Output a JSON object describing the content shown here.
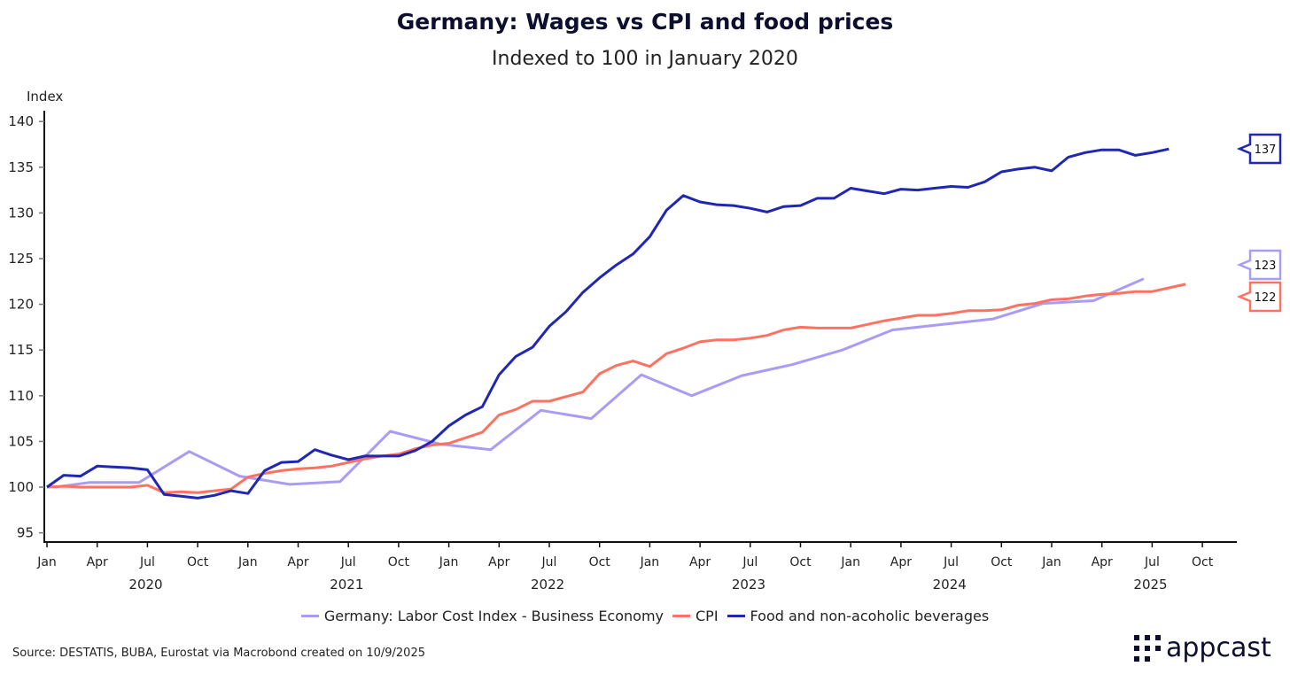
{
  "chart_data": {
    "type": "line",
    "title": "Germany: Wages vs CPI and food prices",
    "subtitle": "Indexed to 100 in January 2020",
    "ylabel": "Index",
    "xlabel": "",
    "ylim": [
      94,
      141
    ],
    "yticks": [
      95,
      100,
      105,
      110,
      115,
      120,
      125,
      130,
      135,
      140
    ],
    "xticks": [
      "Jan",
      "Apr",
      "Jul",
      "Oct",
      "Jan",
      "Apr",
      "Jul",
      "Oct",
      "Jan",
      "Apr",
      "Jul",
      "Oct",
      "Jan",
      "Apr",
      "Jul",
      "Oct",
      "Jan",
      "Apr",
      "Jul",
      "Oct",
      "Jan",
      "Apr",
      "Jul",
      "Oct"
    ],
    "years": [
      "2020",
      "2021",
      "2022",
      "2023",
      "2024",
      "2025"
    ],
    "x_start": "Jan 2020",
    "grid": false,
    "legend_position": "bottom",
    "series": [
      {
        "name": "Germany: Labor Cost Index - Business Economy",
        "frequency": "quarterly",
        "color": "#a99cf7",
        "end_label": "123",
        "values": [
          100,
          100.5,
          100.5,
          103.9,
          101.2,
          100.3,
          100.6,
          106.1,
          104.7,
          104.1,
          108.4,
          107.5,
          112.3,
          110.0,
          112.2,
          113.4,
          115.0,
          117.2,
          117.8,
          118.4,
          120.1,
          120.4,
          122.8
        ]
      },
      {
        "name": "CPI",
        "frequency": "monthly",
        "color": "#ff7262",
        "end_label": "122",
        "values": [
          100,
          100.1,
          100,
          100,
          100,
          100,
          100.2,
          99.4,
          99.5,
          99.4,
          99.6,
          99.8,
          101.1,
          101.5,
          101.8,
          102.0,
          102.1,
          102.3,
          102.7,
          103.1,
          103.4,
          103.6,
          104.2,
          104.6,
          104.8,
          105.4,
          106.0,
          107.9,
          108.5,
          109.4,
          109.4,
          109.9,
          110.4,
          112.4,
          113.3,
          113.8,
          113.2,
          114.6,
          115.2,
          115.9,
          116.1,
          116.1,
          116.3,
          116.6,
          117.2,
          117.5,
          117.4,
          117.4,
          117.4,
          117.8,
          118.2,
          118.5,
          118.8,
          118.8,
          119.0,
          119.3,
          119.3,
          119.4,
          119.9,
          120.1,
          120.5,
          120.6,
          120.9,
          121.1,
          121.2,
          121.4,
          121.4,
          121.8,
          122.2
        ]
      },
      {
        "name": "Food and non-acoholic beverages",
        "frequency": "monthly",
        "color": "#1f27b3",
        "end_label": "137",
        "values": [
          100,
          101.3,
          101.2,
          102.3,
          102.2,
          102.1,
          101.9,
          99.2,
          99.0,
          98.8,
          99.1,
          99.6,
          99.3,
          101.8,
          102.7,
          102.8,
          104.1,
          103.5,
          103.0,
          103.4,
          103.4,
          103.4,
          104.0,
          105.0,
          106.7,
          107.9,
          108.8,
          112.3,
          114.3,
          115.3,
          117.6,
          119.2,
          121.3,
          122.9,
          124.3,
          125.5,
          127.4,
          130.3,
          131.9,
          131.2,
          130.9,
          130.8,
          130.5,
          130.1,
          130.7,
          130.8,
          131.6,
          131.6,
          132.7,
          132.4,
          132.1,
          132.6,
          132.5,
          132.7,
          132.9,
          132.8,
          133.4,
          134.5,
          134.8,
          135.0,
          134.6,
          136.1,
          136.6,
          136.9,
          136.9,
          136.3,
          136.6,
          137.0
        ]
      }
    ]
  },
  "footer": {
    "source": "Source: DESTATIS, BUBA, Eurostat via Macrobond created on 10/9/2025",
    "logo_text": "appcast"
  }
}
